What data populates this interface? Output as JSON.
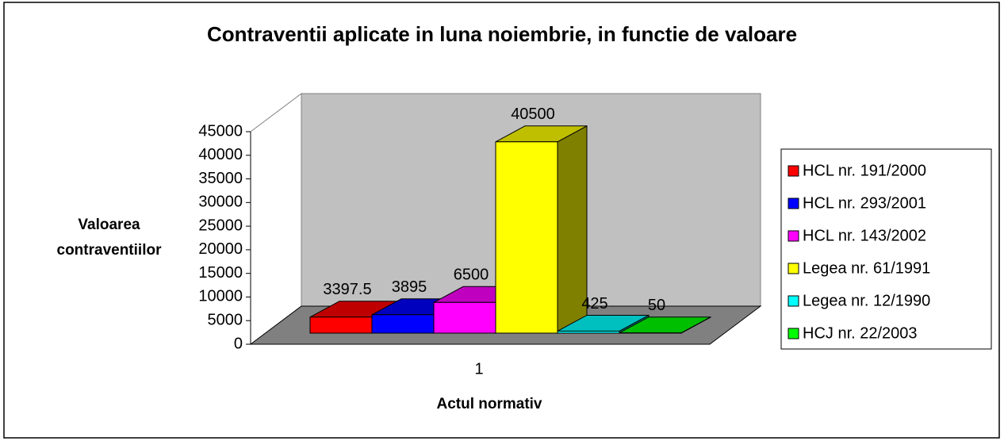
{
  "chart_data": {
    "type": "bar",
    "title": "Contraventii aplicate in luna noiembrie, in functie de valoare",
    "x_label": "Actul normativ",
    "y_label": "Valoarea contraventiilor",
    "categories": [
      "1"
    ],
    "series": [
      {
        "name": "HCL nr. 191/2000",
        "color": "#ff0000",
        "values": [
          3397.5
        ]
      },
      {
        "name": "HCL nr. 293/2001",
        "color": "#0000ff",
        "values": [
          3895
        ]
      },
      {
        "name": "HCL nr. 143/2002",
        "color": "#ff00ff",
        "values": [
          6500
        ]
      },
      {
        "name": "Legea nr. 61/1991",
        "color": "#ffff00",
        "values": [
          40500
        ]
      },
      {
        "name": "Legea nr. 12/1990",
        "color": "#00ffff",
        "values": [
          425
        ]
      },
      {
        "name": "HCJ nr. 22/2003",
        "color": "#00ff00",
        "values": [
          50
        ]
      }
    ],
    "ylim": [
      0,
      45000
    ],
    "yticks": [
      0,
      5000,
      10000,
      15000,
      20000,
      25000,
      30000,
      35000,
      40000,
      45000
    ],
    "legend": "right"
  }
}
